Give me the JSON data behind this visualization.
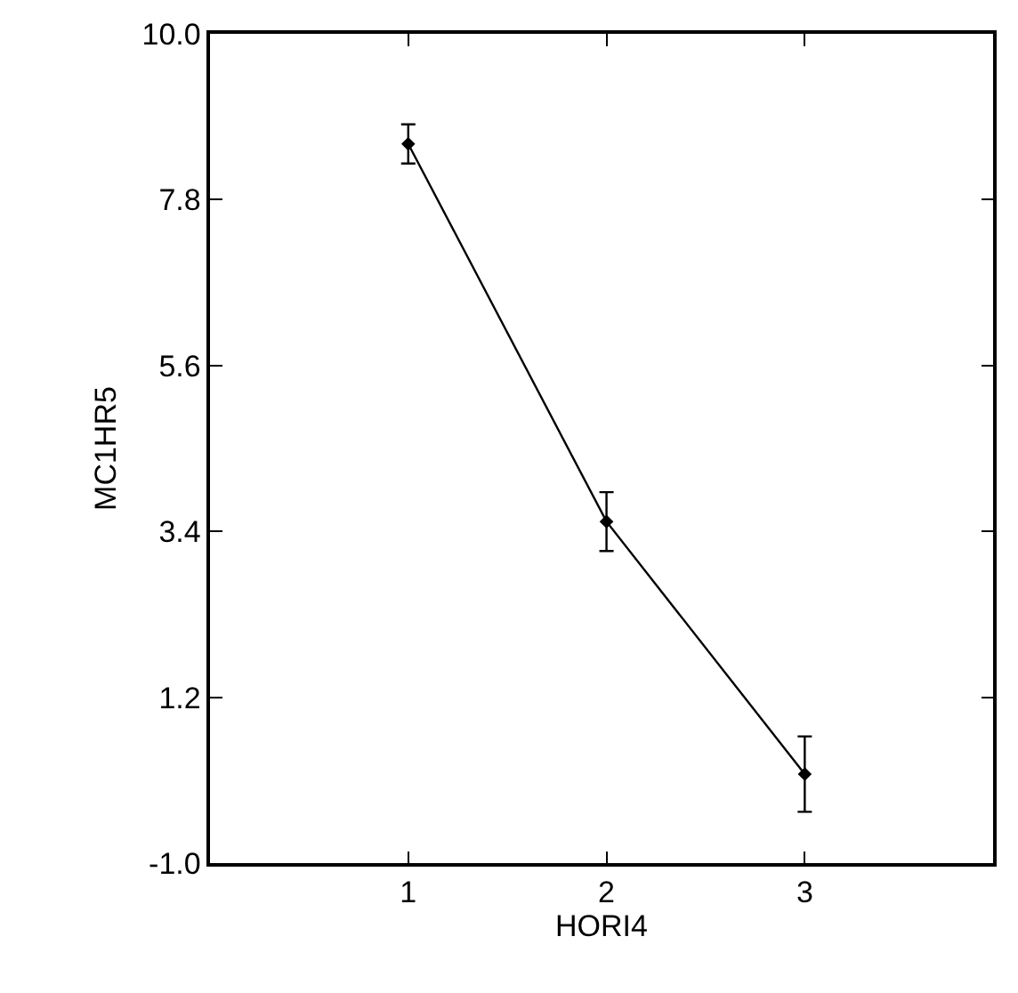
{
  "chart_data": {
    "type": "line",
    "xlabel": "HORI4",
    "ylabel": "MC1HR5",
    "x": [
      1,
      2,
      3
    ],
    "series": [
      {
        "color": "#000000",
        "values": [
          8.54,
          3.53,
          0.18
        ],
        "errors": [
          0.26,
          0.39,
          0.5
        ]
      }
    ],
    "xlim": [
      0,
      3.95
    ],
    "xticks": [
      1,
      2,
      3
    ],
    "ylim": [
      -1.0,
      10.0
    ],
    "yticks": [
      {
        "value": -1,
        "label": "-1.0"
      },
      {
        "value": 1.2,
        "label": "1.2"
      },
      {
        "value": 3.4,
        "label": "3.4"
      },
      {
        "value": 5.6,
        "label": "5.6"
      },
      {
        "value": 7.8,
        "label": "7.8"
      },
      {
        "value": 10,
        "label": "10.0"
      }
    ],
    "grid": false,
    "legend": false,
    "marker": "diamond",
    "line_style": "solid"
  }
}
